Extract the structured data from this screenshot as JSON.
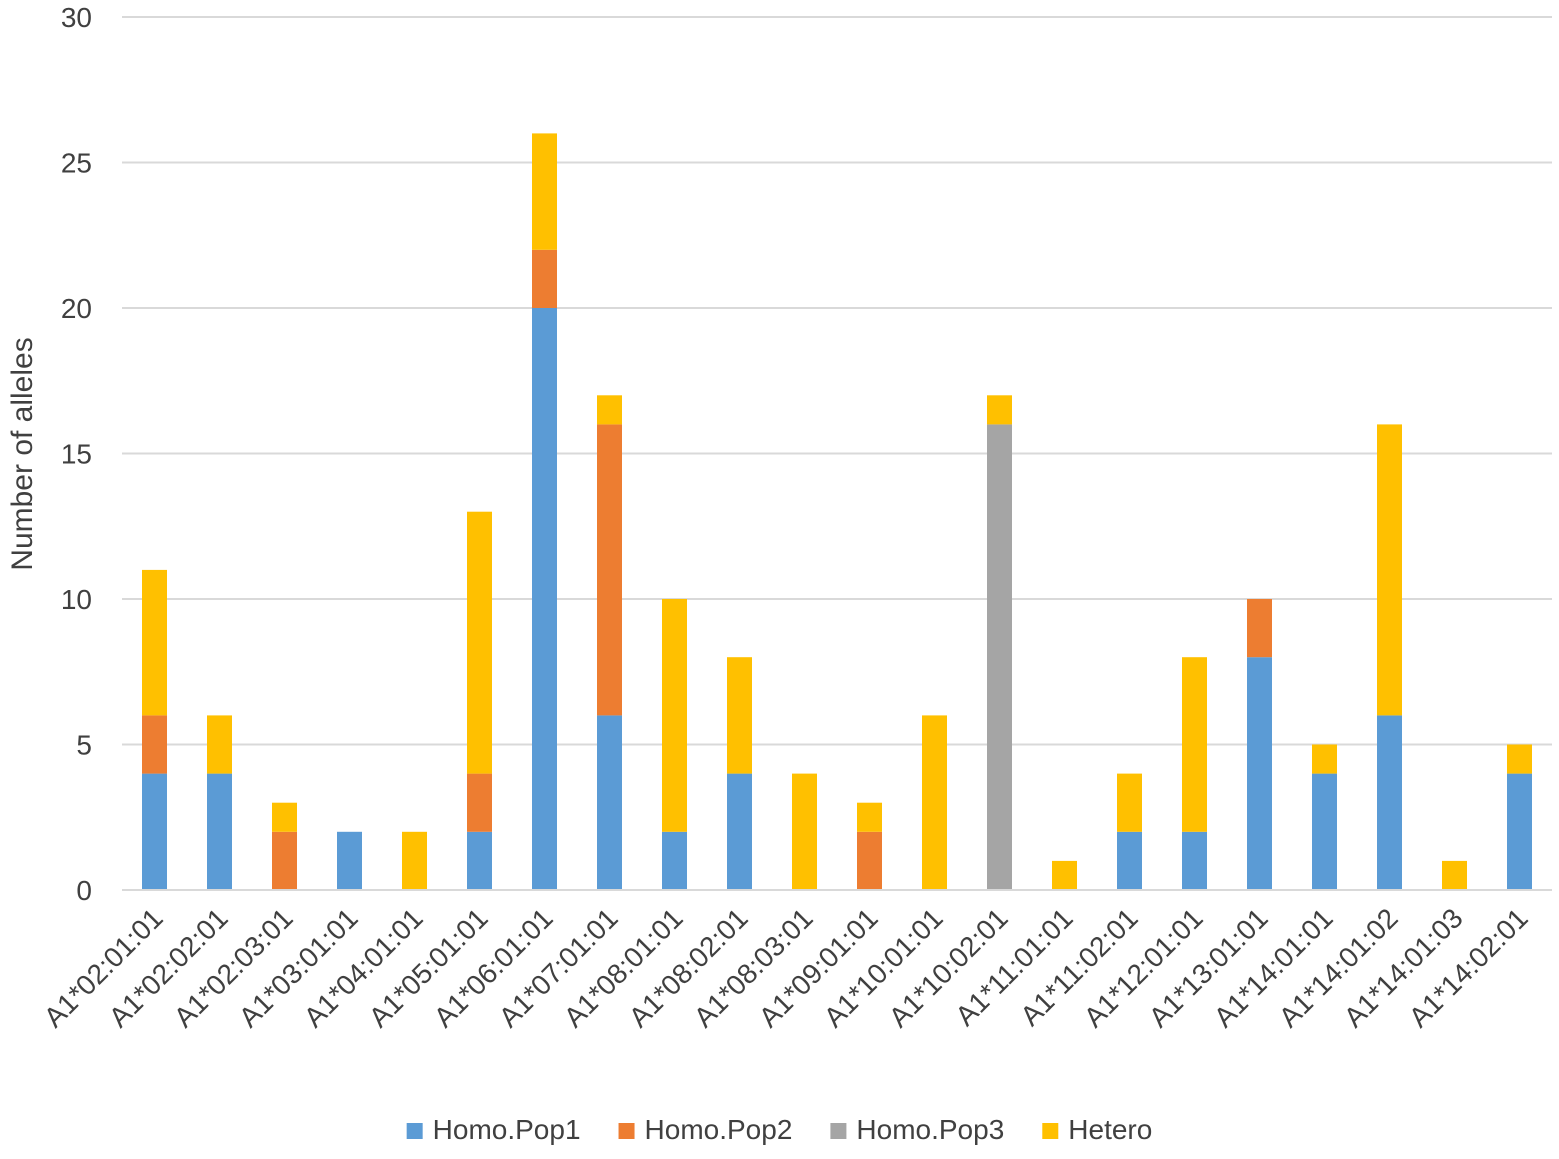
{
  "chart_data": {
    "type": "bar",
    "stacked": true,
    "title": "",
    "xlabel": "",
    "ylabel": "Number of alleles",
    "ylim": [
      0,
      30
    ],
    "yticks": [
      0,
      5,
      10,
      15,
      20,
      25,
      30
    ],
    "grid": true,
    "legend_position": "bottom",
    "categories": [
      "A1*02:01:01",
      "A1*02:02:01",
      "A1*02:03:01",
      "A1*03:01:01",
      "A1*04:01:01",
      "A1*05:01:01",
      "A1*06:01:01",
      "A1*07:01:01",
      "A1*08:01:01",
      "A1*08:02:01",
      "A1*08:03:01",
      "A1*09:01:01",
      "A1*10:01:01",
      "A1*10:02:01",
      "A1*11:01:01",
      "A1*11:02:01",
      "A1*12:01:01",
      "A1*13:01:01",
      "A1*14:01:01",
      "A1*14:01:02",
      "A1*14:01:03",
      "A1*14:02:01"
    ],
    "series": [
      {
        "name": "Homo.Pop1",
        "color": "#5B9BD5",
        "values": [
          4,
          4,
          0,
          2,
          0,
          2,
          20,
          6,
          2,
          4,
          0,
          0,
          0,
          0,
          0,
          2,
          2,
          8,
          4,
          6,
          0,
          4
        ]
      },
      {
        "name": "Homo.Pop2",
        "color": "#ED7D31",
        "values": [
          2,
          0,
          2,
          0,
          0,
          2,
          2,
          10,
          0,
          0,
          0,
          2,
          0,
          0,
          0,
          0,
          0,
          2,
          0,
          0,
          0,
          0
        ]
      },
      {
        "name": "Homo.Pop3",
        "color": "#A5A5A5",
        "values": [
          0,
          0,
          0,
          0,
          0,
          0,
          0,
          0,
          0,
          0,
          0,
          0,
          0,
          16,
          0,
          0,
          0,
          0,
          0,
          0,
          0,
          0
        ]
      },
      {
        "name": "Hetero",
        "color": "#FFC000",
        "values": [
          5,
          2,
          1,
          0,
          2,
          9,
          4,
          1,
          8,
          4,
          4,
          1,
          6,
          1,
          1,
          2,
          6,
          0,
          1,
          10,
          1,
          1
        ]
      }
    ]
  }
}
